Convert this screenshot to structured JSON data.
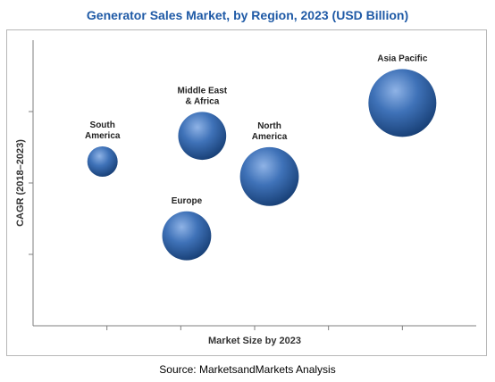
{
  "title": "Generator Sales Market, by Region, 2023 (USD Billion)",
  "source": "Source: MarketsandMarkets Analysis",
  "colors": {
    "title": "#1f5aa6",
    "bubble_light": "#8fb3e6",
    "bubble_mid": "#3f72b8",
    "bubble_dark": "#163d73",
    "axis": "#7f7f7f"
  },
  "chart_data": {
    "type": "bubble",
    "title": "Generator Sales Market, by Region, 2023 (USD Billion)",
    "xlabel": "Market Size by 2023",
    "ylabel": "CAGR (2018–2023)",
    "xlim": [
      0,
      6
    ],
    "ylim": [
      0,
      4
    ],
    "xticks": [
      1,
      2,
      3,
      4,
      5
    ],
    "yticks": [
      1,
      2,
      3
    ],
    "grid": false,
    "legend": "none",
    "points": [
      {
        "name": "South America",
        "lines": [
          "South",
          "America"
        ],
        "x": 0.94,
        "y": 2.3,
        "size": 0.2
      },
      {
        "name": "Middle East & Africa",
        "lines": [
          "Middle East",
          "& Africa"
        ],
        "x": 2.29,
        "y": 2.66,
        "size": 0.5
      },
      {
        "name": "North America",
        "lines": [
          "North",
          "America"
        ],
        "x": 3.2,
        "y": 2.09,
        "size": 0.75
      },
      {
        "name": "Europe",
        "lines": [
          "Europe"
        ],
        "x": 2.08,
        "y": 1.26,
        "size": 0.52
      },
      {
        "name": "Asia Pacific",
        "lines": [
          "Asia Pacific"
        ],
        "x": 5.0,
        "y": 3.12,
        "size": 1.0
      }
    ]
  }
}
